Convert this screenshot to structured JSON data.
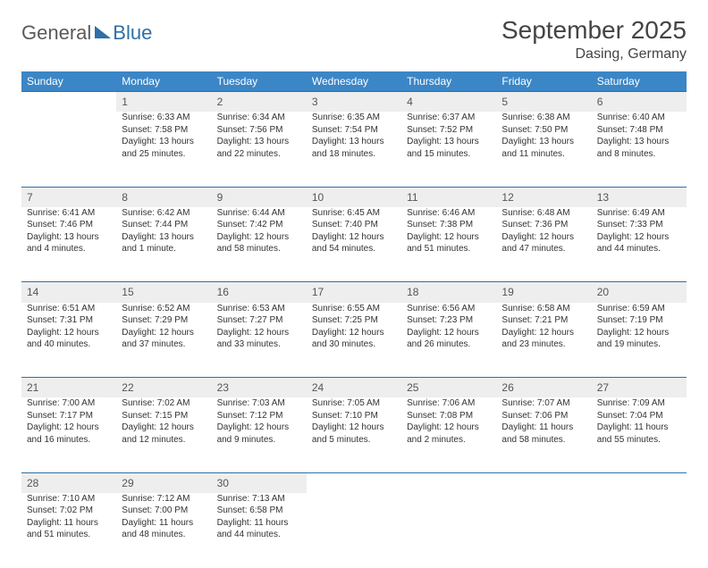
{
  "logo": {
    "part1": "General",
    "part2": "Blue"
  },
  "title": "September 2025",
  "location": "Dasing, Germany",
  "colors": {
    "header_bg": "#3b86c6",
    "header_text": "#ffffff",
    "daynum_bg": "#eeeeee",
    "row_border": "#2f6fa8",
    "body_text": "#333333",
    "logo_gray": "#5a5a5a",
    "logo_blue": "#2f6fa8",
    "page_bg": "#ffffff"
  },
  "typography": {
    "title_fontsize": 28,
    "location_fontsize": 16,
    "header_fontsize": 12,
    "daynum_fontsize": 12,
    "cell_fontsize": 10
  },
  "weekdays": [
    "Sunday",
    "Monday",
    "Tuesday",
    "Wednesday",
    "Thursday",
    "Friday",
    "Saturday"
  ],
  "weeks": [
    [
      null,
      {
        "n": "1",
        "sunrise": "Sunrise: 6:33 AM",
        "sunset": "Sunset: 7:58 PM",
        "day1": "Daylight: 13 hours",
        "day2": "and 25 minutes."
      },
      {
        "n": "2",
        "sunrise": "Sunrise: 6:34 AM",
        "sunset": "Sunset: 7:56 PM",
        "day1": "Daylight: 13 hours",
        "day2": "and 22 minutes."
      },
      {
        "n": "3",
        "sunrise": "Sunrise: 6:35 AM",
        "sunset": "Sunset: 7:54 PM",
        "day1": "Daylight: 13 hours",
        "day2": "and 18 minutes."
      },
      {
        "n": "4",
        "sunrise": "Sunrise: 6:37 AM",
        "sunset": "Sunset: 7:52 PM",
        "day1": "Daylight: 13 hours",
        "day2": "and 15 minutes."
      },
      {
        "n": "5",
        "sunrise": "Sunrise: 6:38 AM",
        "sunset": "Sunset: 7:50 PM",
        "day1": "Daylight: 13 hours",
        "day2": "and 11 minutes."
      },
      {
        "n": "6",
        "sunrise": "Sunrise: 6:40 AM",
        "sunset": "Sunset: 7:48 PM",
        "day1": "Daylight: 13 hours",
        "day2": "and 8 minutes."
      }
    ],
    [
      {
        "n": "7",
        "sunrise": "Sunrise: 6:41 AM",
        "sunset": "Sunset: 7:46 PM",
        "day1": "Daylight: 13 hours",
        "day2": "and 4 minutes."
      },
      {
        "n": "8",
        "sunrise": "Sunrise: 6:42 AM",
        "sunset": "Sunset: 7:44 PM",
        "day1": "Daylight: 13 hours",
        "day2": "and 1 minute."
      },
      {
        "n": "9",
        "sunrise": "Sunrise: 6:44 AM",
        "sunset": "Sunset: 7:42 PM",
        "day1": "Daylight: 12 hours",
        "day2": "and 58 minutes."
      },
      {
        "n": "10",
        "sunrise": "Sunrise: 6:45 AM",
        "sunset": "Sunset: 7:40 PM",
        "day1": "Daylight: 12 hours",
        "day2": "and 54 minutes."
      },
      {
        "n": "11",
        "sunrise": "Sunrise: 6:46 AM",
        "sunset": "Sunset: 7:38 PM",
        "day1": "Daylight: 12 hours",
        "day2": "and 51 minutes."
      },
      {
        "n": "12",
        "sunrise": "Sunrise: 6:48 AM",
        "sunset": "Sunset: 7:36 PM",
        "day1": "Daylight: 12 hours",
        "day2": "and 47 minutes."
      },
      {
        "n": "13",
        "sunrise": "Sunrise: 6:49 AM",
        "sunset": "Sunset: 7:33 PM",
        "day1": "Daylight: 12 hours",
        "day2": "and 44 minutes."
      }
    ],
    [
      {
        "n": "14",
        "sunrise": "Sunrise: 6:51 AM",
        "sunset": "Sunset: 7:31 PM",
        "day1": "Daylight: 12 hours",
        "day2": "and 40 minutes."
      },
      {
        "n": "15",
        "sunrise": "Sunrise: 6:52 AM",
        "sunset": "Sunset: 7:29 PM",
        "day1": "Daylight: 12 hours",
        "day2": "and 37 minutes."
      },
      {
        "n": "16",
        "sunrise": "Sunrise: 6:53 AM",
        "sunset": "Sunset: 7:27 PM",
        "day1": "Daylight: 12 hours",
        "day2": "and 33 minutes."
      },
      {
        "n": "17",
        "sunrise": "Sunrise: 6:55 AM",
        "sunset": "Sunset: 7:25 PM",
        "day1": "Daylight: 12 hours",
        "day2": "and 30 minutes."
      },
      {
        "n": "18",
        "sunrise": "Sunrise: 6:56 AM",
        "sunset": "Sunset: 7:23 PM",
        "day1": "Daylight: 12 hours",
        "day2": "and 26 minutes."
      },
      {
        "n": "19",
        "sunrise": "Sunrise: 6:58 AM",
        "sunset": "Sunset: 7:21 PM",
        "day1": "Daylight: 12 hours",
        "day2": "and 23 minutes."
      },
      {
        "n": "20",
        "sunrise": "Sunrise: 6:59 AM",
        "sunset": "Sunset: 7:19 PM",
        "day1": "Daylight: 12 hours",
        "day2": "and 19 minutes."
      }
    ],
    [
      {
        "n": "21",
        "sunrise": "Sunrise: 7:00 AM",
        "sunset": "Sunset: 7:17 PM",
        "day1": "Daylight: 12 hours",
        "day2": "and 16 minutes."
      },
      {
        "n": "22",
        "sunrise": "Sunrise: 7:02 AM",
        "sunset": "Sunset: 7:15 PM",
        "day1": "Daylight: 12 hours",
        "day2": "and 12 minutes."
      },
      {
        "n": "23",
        "sunrise": "Sunrise: 7:03 AM",
        "sunset": "Sunset: 7:12 PM",
        "day1": "Daylight: 12 hours",
        "day2": "and 9 minutes."
      },
      {
        "n": "24",
        "sunrise": "Sunrise: 7:05 AM",
        "sunset": "Sunset: 7:10 PM",
        "day1": "Daylight: 12 hours",
        "day2": "and 5 minutes."
      },
      {
        "n": "25",
        "sunrise": "Sunrise: 7:06 AM",
        "sunset": "Sunset: 7:08 PM",
        "day1": "Daylight: 12 hours",
        "day2": "and 2 minutes."
      },
      {
        "n": "26",
        "sunrise": "Sunrise: 7:07 AM",
        "sunset": "Sunset: 7:06 PM",
        "day1": "Daylight: 11 hours",
        "day2": "and 58 minutes."
      },
      {
        "n": "27",
        "sunrise": "Sunrise: 7:09 AM",
        "sunset": "Sunset: 7:04 PM",
        "day1": "Daylight: 11 hours",
        "day2": "and 55 minutes."
      }
    ],
    [
      {
        "n": "28",
        "sunrise": "Sunrise: 7:10 AM",
        "sunset": "Sunset: 7:02 PM",
        "day1": "Daylight: 11 hours",
        "day2": "and 51 minutes."
      },
      {
        "n": "29",
        "sunrise": "Sunrise: 7:12 AM",
        "sunset": "Sunset: 7:00 PM",
        "day1": "Daylight: 11 hours",
        "day2": "and 48 minutes."
      },
      {
        "n": "30",
        "sunrise": "Sunrise: 7:13 AM",
        "sunset": "Sunset: 6:58 PM",
        "day1": "Daylight: 11 hours",
        "day2": "and 44 minutes."
      },
      null,
      null,
      null,
      null
    ]
  ]
}
